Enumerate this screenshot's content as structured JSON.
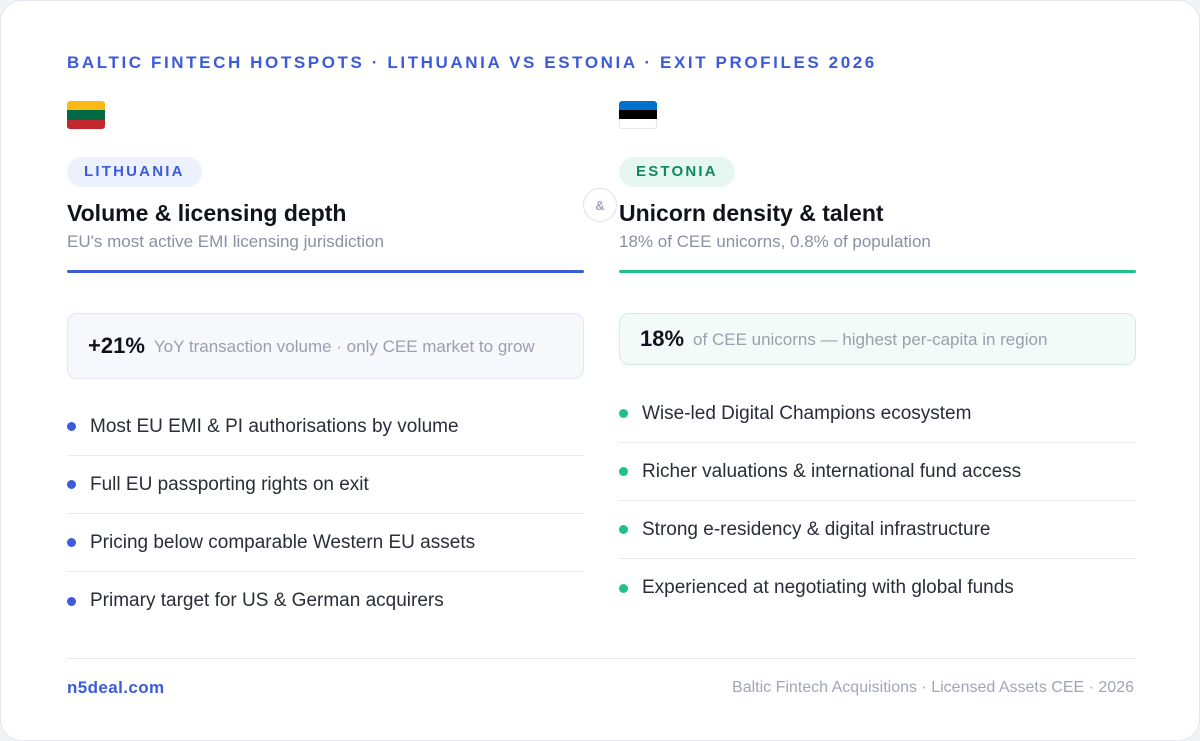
{
  "eyebrow": "BALTIC FINTECH HOTSPOTS · LITHUANIA VS ESTONIA · EXIT PROFILES 2026",
  "divider_symbol": "&",
  "lithuania": {
    "flag_icon": "lithuania-flag-icon",
    "flag_colors": [
      "#FDB913",
      "#006A44",
      "#C1272D"
    ],
    "badge": "LITHUANIA",
    "title": "Volume & licensing depth",
    "subtitle": "EU's most active EMI licensing jurisdiction",
    "accent_color": "#3b5bdb",
    "stat": {
      "value": "+21%",
      "text": "YoY transaction volume · only CEE market to grow"
    },
    "items": [
      {
        "label": "Most EU EMI & PI authorisations by volume"
      },
      {
        "label": "Full EU passporting rights on exit"
      },
      {
        "label": "Pricing below comparable Western EU assets"
      },
      {
        "label": "Primary target for US & German acquirers"
      }
    ]
  },
  "estonia": {
    "flag_icon": "estonia-flag-icon",
    "flag_colors": [
      "#0072CE",
      "#000000",
      "#FFFFFF"
    ],
    "badge": "ESTONIA",
    "title": "Unicorn density & talent",
    "subtitle": "18% of CEE unicorns, 0.8% of population",
    "accent_color": "#20c08a",
    "stat": {
      "value": "18%",
      "text": "of CEE unicorns — highest per-capita in region"
    },
    "items": [
      {
        "label": "Wise-led Digital Champions ecosystem"
      },
      {
        "label": "Richer valuations & international fund access"
      },
      {
        "label": "Strong e-residency & digital infrastructure"
      },
      {
        "label": "Experienced at negotiating with global funds"
      }
    ]
  },
  "footer": {
    "site": "n5deal.com",
    "caption": "Baltic Fintech Acquisitions · Licensed Assets CEE · 2026"
  }
}
